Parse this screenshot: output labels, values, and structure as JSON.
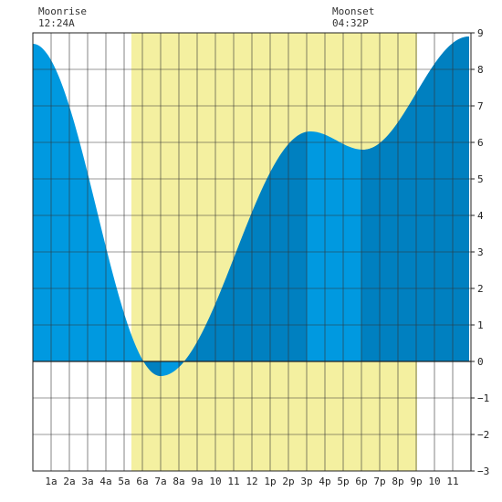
{
  "moonrise": {
    "label": "Moonrise",
    "time": "12:24A"
  },
  "moonset": {
    "label": "Moonset",
    "time": "04:32P"
  },
  "colors": {
    "daylight": "#f4f0a0",
    "tide_light": "#0099e0",
    "tide_dark": "#0080c0",
    "grid": "#333333",
    "background": "#ffffff"
  },
  "chart_data": {
    "type": "area",
    "x_unit": "hour of day",
    "xlim": [
      0,
      24
    ],
    "ylim": [
      -3,
      9
    ],
    "grid": true,
    "x_tick_labels": [
      {
        "hour": 1,
        "label": "1a"
      },
      {
        "hour": 2,
        "label": "2a"
      },
      {
        "hour": 3,
        "label": "3a"
      },
      {
        "hour": 4,
        "label": "4a"
      },
      {
        "hour": 5,
        "label": "5a"
      },
      {
        "hour": 6,
        "label": "6a"
      },
      {
        "hour": 7,
        "label": "7a"
      },
      {
        "hour": 8,
        "label": "8a"
      },
      {
        "hour": 9,
        "label": "9a"
      },
      {
        "hour": 10,
        "label": "10"
      },
      {
        "hour": 11,
        "label": "11"
      },
      {
        "hour": 12,
        "label": "12"
      },
      {
        "hour": 13,
        "label": "1p"
      },
      {
        "hour": 14,
        "label": "2p"
      },
      {
        "hour": 15,
        "label": "3p"
      },
      {
        "hour": 16,
        "label": "4p"
      },
      {
        "hour": 17,
        "label": "5p"
      },
      {
        "hour": 18,
        "label": "6p"
      },
      {
        "hour": 19,
        "label": "7p"
      },
      {
        "hour": 20,
        "label": "8p"
      },
      {
        "hour": 21,
        "label": "9p"
      },
      {
        "hour": 22,
        "label": "10"
      },
      {
        "hour": 23,
        "label": "11"
      }
    ],
    "y_ticks": [
      -3,
      -2,
      -1,
      0,
      1,
      2,
      3,
      4,
      5,
      6,
      7,
      8,
      9
    ],
    "daylight_span": [
      5.4,
      21.05
    ],
    "tide_events": [
      {
        "hour": 0,
        "height": 8.7
      },
      {
        "hour": 7.0,
        "height": -0.4
      },
      {
        "hour": 15.2,
        "height": 6.3
      },
      {
        "hour": 18.1,
        "height": 5.8
      },
      {
        "hour": 23.9,
        "height": 8.9
      }
    ],
    "shade_bands": [
      [
        6,
        7
      ],
      [
        8,
        15
      ],
      [
        18,
        23.9
      ]
    ]
  }
}
